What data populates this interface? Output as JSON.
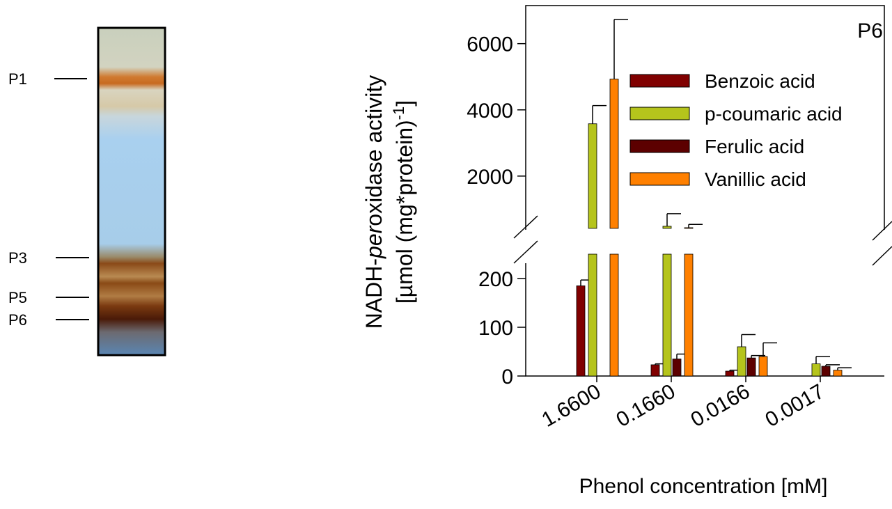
{
  "gel_labels": [
    "P1",
    "P3",
    "P5",
    "P6"
  ],
  "chart_data": {
    "type": "bar",
    "panel_label": "P6",
    "xlabel": "Phenol concentration [mM]",
    "ylabel": [
      [
        "NADH-",
        "per",
        "oxidase activity"
      ],
      [
        "[µmol (mg*protein)",
        "-1",
        "]"
      ]
    ],
    "categories": [
      "1.6600",
      "0.1660",
      "0.0166",
      "0.0017"
    ],
    "ylim_lower": [
      0,
      250
    ],
    "yticks_lower": [
      0,
      100,
      200
    ],
    "ylim_upper": [
      420,
      7150
    ],
    "yticks_upper": [
      2000,
      4000,
      6000
    ],
    "series": [
      {
        "name": "Benzoic acid",
        "color": "#800000",
        "values": [
          185,
          23,
          10,
          null
        ],
        "errors": [
          12,
          2,
          2,
          null
        ]
      },
      {
        "name": "p-coumaric acid",
        "color": "#b5c41c",
        "values": [
          3580,
          484,
          60,
          25
        ],
        "errors": [
          550,
          380,
          25,
          15
        ]
      },
      {
        "name": "Ferulic acid",
        "color": "#5c0000",
        "values": [
          null,
          35,
          37,
          20
        ],
        "errors": [
          null,
          10,
          5,
          3
        ]
      },
      {
        "name": "Vanillic acid",
        "color": "#ff8000",
        "values": [
          4930,
          442,
          40,
          12
        ],
        "errors": [
          1800,
          100,
          28,
          5
        ]
      }
    ]
  }
}
